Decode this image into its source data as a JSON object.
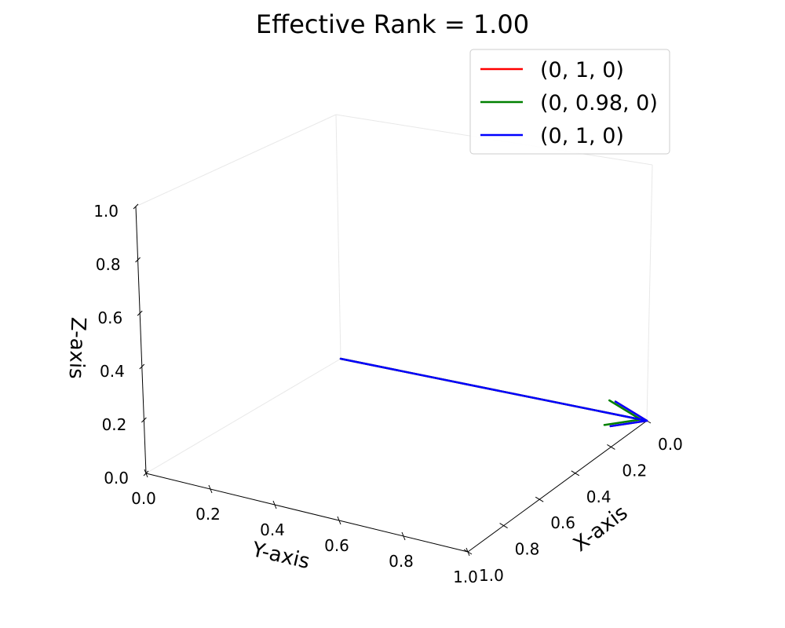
{
  "chart_data": {
    "type": "line",
    "projection": "3d",
    "title": "Effective Rank = 1.00",
    "xlabel": "X-axis",
    "ylabel": "Y-axis",
    "zlabel": "Z-axis",
    "xlim": [
      0,
      1
    ],
    "ylim": [
      0,
      1
    ],
    "zlim": [
      0,
      1
    ],
    "ticks": {
      "x": [
        "0.0",
        "0.2",
        "0.4",
        "0.6",
        "0.8",
        "1.0"
      ],
      "y": [
        "0.0",
        "0.2",
        "0.4",
        "0.6",
        "0.8",
        "1.0"
      ],
      "z": [
        "0.0",
        "0.2",
        "0.4",
        "0.6",
        "0.8",
        "1.0"
      ]
    },
    "grid": false,
    "legend_position": "top-right",
    "series": [
      {
        "name": "(0, 1, 0)",
        "color": "#ff0000",
        "start": [
          0,
          0,
          0
        ],
        "vector": [
          0,
          1,
          0
        ]
      },
      {
        "name": "(0, 0.98, 0)",
        "color": "#008000",
        "start": [
          0,
          0,
          0
        ],
        "vector": [
          0,
          0.98,
          0
        ]
      },
      {
        "name": "(0, 1, 0)",
        "color": "#0000ff",
        "start": [
          0,
          0,
          0
        ],
        "vector": [
          0,
          1,
          0
        ]
      }
    ]
  }
}
